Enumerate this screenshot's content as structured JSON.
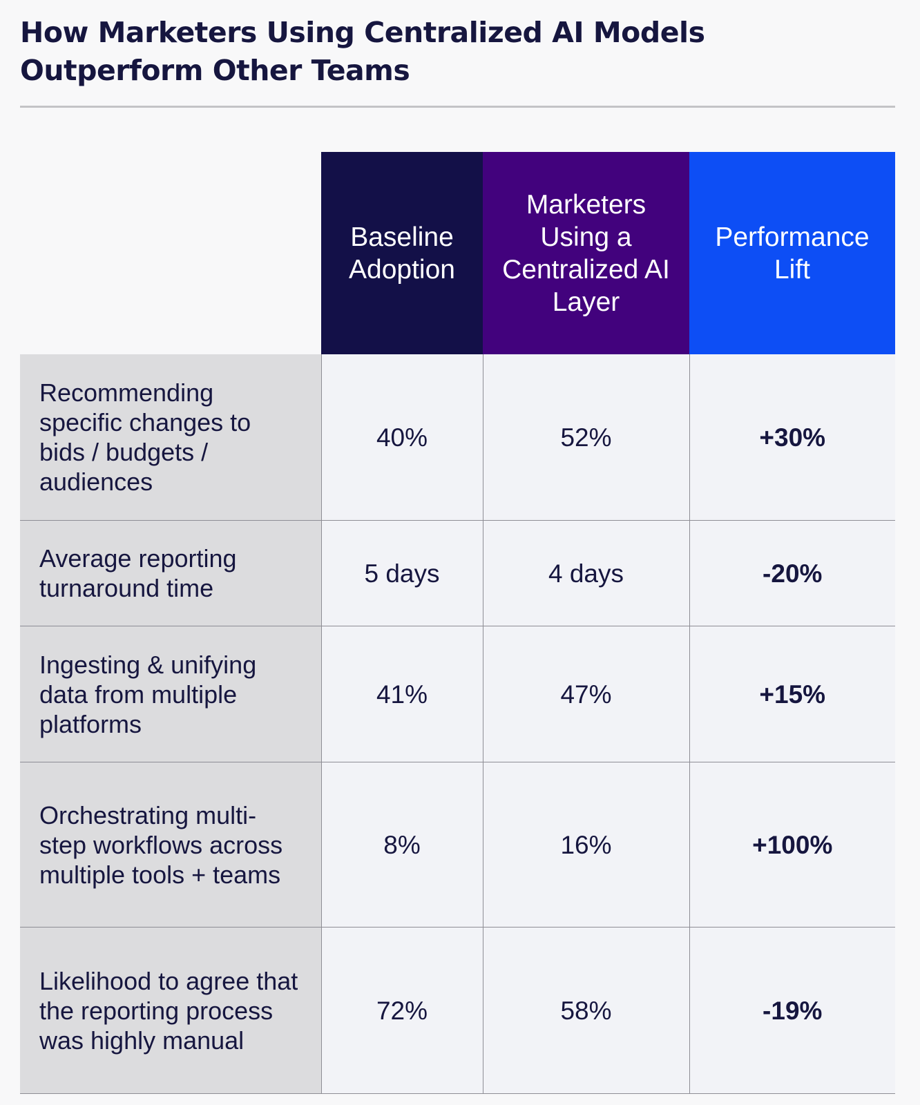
{
  "chart_data": {
    "type": "table",
    "title": "How Marketers Using Centralized AI Models Outperform Other Teams",
    "columns": [
      "Baseline Adoption",
      "Marketers Using a Centralized AI Layer",
      "Performance Lift"
    ],
    "rows": [
      {
        "label": "Recommending specific changes to bids / budgets / audiences",
        "baseline": "40%",
        "centralized": "52%",
        "lift": "+30%"
      },
      {
        "label": "Average reporting turnaround time",
        "baseline": "5 days",
        "centralized": "4 days",
        "lift": "-20%"
      },
      {
        "label": "Ingesting & unifying data from multiple platforms",
        "baseline": "41%",
        "centralized": "47%",
        "lift": "+15%"
      },
      {
        "label": "Orchestrating multi-step workflows across multiple tools + teams",
        "baseline": "8%",
        "centralized": "16%",
        "lift": "+100%"
      },
      {
        "label": "Likelihood to agree that the reporting process was highly manual",
        "baseline": "72%",
        "centralized": "58%",
        "lift": "-19%"
      }
    ]
  },
  "colors": {
    "title_text": "#16163f",
    "baseline_header": "#131048",
    "centralized_header": "#42027d",
    "lift_header": "#0d4ef5",
    "label_cell": "#dcdcde",
    "value_cell": "#f2f3f7"
  }
}
